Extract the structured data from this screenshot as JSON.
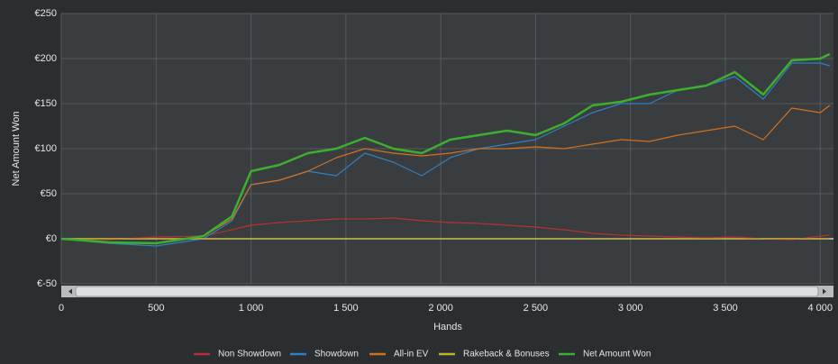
{
  "chart_data": {
    "type": "line",
    "x_label": "Hands",
    "y_label": "Net Amount Won",
    "x": [
      0,
      250,
      500,
      750,
      900,
      1000,
      1150,
      1300,
      1450,
      1600,
      1750,
      1900,
      2050,
      2200,
      2350,
      2500,
      2650,
      2800,
      2950,
      3100,
      3250,
      3400,
      3550,
      3700,
      3850,
      4000,
      4050
    ],
    "series": [
      {
        "name": "Non Showdown",
        "color": "#b5312f",
        "values": [
          0,
          -1,
          2,
          3,
          10,
          15,
          18,
          20,
          22,
          22,
          23,
          20,
          18,
          17,
          15,
          13,
          10,
          6,
          4,
          3,
          2,
          1,
          2,
          0,
          -1,
          3,
          4
        ]
      },
      {
        "name": "Showdown",
        "color": "#2f7fc1",
        "values": [
          0,
          -5,
          -8,
          0,
          20,
          60,
          65,
          75,
          70,
          95,
          85,
          70,
          90,
          100,
          105,
          110,
          125,
          140,
          150,
          150,
          165,
          170,
          180,
          155,
          195,
          195,
          192
        ]
      },
      {
        "name": "All-in EV",
        "color": "#d2701f",
        "values": [
          0,
          -4,
          -5,
          3,
          22,
          60,
          65,
          75,
          90,
          100,
          95,
          92,
          95,
          100,
          100,
          102,
          100,
          105,
          110,
          108,
          115,
          120,
          125,
          110,
          145,
          140,
          148
        ]
      },
      {
        "name": "Rakeback & Bonuses",
        "color": "#c2ae2a",
        "values": [
          0,
          0,
          0,
          0,
          0,
          0,
          0,
          0,
          0,
          0,
          0,
          0,
          0,
          0,
          0,
          0,
          0,
          0,
          0,
          0,
          0,
          0,
          0,
          0,
          0,
          0,
          0
        ]
      },
      {
        "name": "Net Amount Won",
        "color": "#3cb02c",
        "values": [
          0,
          -4,
          -5,
          3,
          25,
          75,
          82,
          95,
          100,
          112,
          100,
          95,
          110,
          115,
          120,
          115,
          128,
          148,
          152,
          160,
          165,
          170,
          185,
          160,
          198,
          200,
          205
        ]
      }
    ],
    "xlim": [
      0,
      4070
    ],
    "ylim": [
      -50,
      250
    ],
    "xticks": [
      0,
      500,
      {
        "value": 1000,
        "label": "1 000"
      },
      {
        "value": 1500,
        "label": "1 500"
      },
      {
        "value": 2000,
        "label": "2 000"
      },
      {
        "value": 2500,
        "label": "2 500"
      },
      {
        "value": 3000,
        "label": "3 000"
      },
      {
        "value": 3500,
        "label": "3 500"
      },
      {
        "value": 4000,
        "label": "4 000"
      }
    ],
    "yticks": [
      {
        "value": -50,
        "label": "€-50"
      },
      {
        "value": 0,
        "label": "€0"
      },
      {
        "value": 50,
        "label": "€50"
      },
      {
        "value": 100,
        "label": "€100"
      },
      {
        "value": 150,
        "label": "€150"
      },
      {
        "value": 200,
        "label": "€200"
      },
      {
        "value": 250,
        "label": "€250"
      }
    ],
    "grid": true
  }
}
